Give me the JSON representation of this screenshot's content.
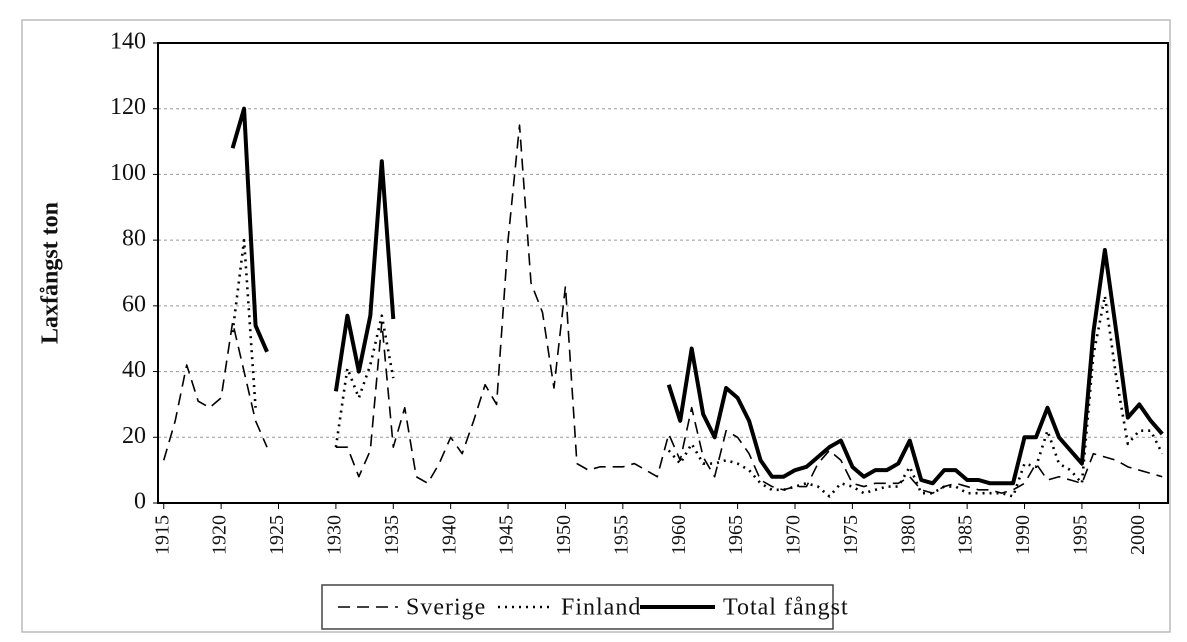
{
  "chart_data": {
    "type": "line",
    "y_label": "Laxfångst ton",
    "x": [
      1915,
      1916,
      1917,
      1918,
      1919,
      1920,
      1921,
      1922,
      1923,
      1924,
      1925,
      1926,
      1927,
      1928,
      1929,
      1930,
      1931,
      1932,
      1933,
      1934,
      1935,
      1936,
      1937,
      1938,
      1939,
      1940,
      1941,
      1942,
      1943,
      1944,
      1945,
      1946,
      1947,
      1948,
      1949,
      1950,
      1951,
      1952,
      1953,
      1954,
      1955,
      1956,
      1957,
      1958,
      1959,
      1960,
      1961,
      1962,
      1963,
      1964,
      1965,
      1966,
      1967,
      1968,
      1969,
      1970,
      1971,
      1972,
      1973,
      1974,
      1975,
      1976,
      1977,
      1978,
      1979,
      1980,
      1981,
      1982,
      1983,
      1984,
      1985,
      1986,
      1987,
      1988,
      1989,
      1990,
      1991,
      1992,
      1993,
      1994,
      1995,
      1996,
      1997,
      1998,
      1999,
      2000,
      2001,
      2002
    ],
    "series": [
      {
        "name": "Sverige",
        "color": "#000000",
        "style": "dashed",
        "values": [
          13,
          25,
          42,
          31,
          29,
          32,
          55,
          40,
          25,
          17,
          null,
          null,
          null,
          null,
          null,
          17,
          17,
          8,
          16,
          55,
          17,
          29,
          8,
          6,
          12,
          20,
          15,
          25,
          36,
          30,
          80,
          115,
          67,
          58,
          35,
          66,
          12,
          10,
          11,
          11,
          11,
          12,
          10,
          8,
          21,
          13,
          29,
          14,
          8,
          22,
          20,
          15,
          7,
          5,
          4,
          5,
          5,
          12,
          16,
          13,
          6,
          5,
          6,
          6,
          6,
          8,
          4,
          3,
          5,
          6,
          5,
          4,
          4,
          3,
          4,
          6,
          12,
          7,
          8,
          7,
          6,
          15,
          14,
          13,
          11,
          10,
          9,
          8
        ]
      },
      {
        "name": "Finland",
        "color": "#000000",
        "style": "dotted",
        "values": [
          null,
          null,
          null,
          null,
          null,
          null,
          52,
          80,
          29,
          null,
          null,
          null,
          null,
          null,
          null,
          17,
          41,
          32,
          42,
          57,
          38,
          null,
          null,
          null,
          null,
          null,
          null,
          null,
          null,
          null,
          null,
          null,
          null,
          null,
          null,
          null,
          null,
          null,
          null,
          null,
          null,
          null,
          null,
          null,
          16,
          12,
          18,
          12,
          12,
          13,
          12,
          10,
          6,
          4,
          4,
          5,
          6,
          5,
          2,
          6,
          5,
          3,
          4,
          5,
          5,
          11,
          3,
          3,
          5,
          5,
          3,
          3,
          3,
          3,
          2,
          12,
          11,
          22,
          12,
          10,
          6,
          45,
          63,
          38,
          18,
          22,
          22,
          15
        ]
      },
      {
        "name": "Total fångst",
        "color": "#000000",
        "style": "solid",
        "values": [
          null,
          null,
          null,
          null,
          null,
          null,
          108,
          120,
          54,
          46,
          null,
          null,
          null,
          null,
          null,
          34,
          57,
          40,
          57,
          104,
          56,
          null,
          null,
          null,
          null,
          null,
          null,
          null,
          null,
          null,
          null,
          null,
          null,
          null,
          null,
          null,
          null,
          null,
          null,
          null,
          null,
          null,
          null,
          null,
          36,
          25,
          47,
          27,
          20,
          35,
          32,
          25,
          13,
          8,
          8,
          10,
          11,
          14,
          17,
          19,
          11,
          8,
          10,
          10,
          12,
          19,
          7,
          6,
          10,
          10,
          7,
          7,
          6,
          6,
          6,
          20,
          20,
          29,
          20,
          16,
          12,
          52,
          77,
          52,
          26,
          30,
          25,
          21
        ]
      }
    ],
    "xlim": [
      1914.5,
      2002.5
    ],
    "xticks": [
      1915,
      1920,
      1925,
      1930,
      1935,
      1940,
      1945,
      1950,
      1955,
      1960,
      1965,
      1970,
      1975,
      1980,
      1985,
      1990,
      1995,
      2000
    ],
    "ylim": [
      0,
      140
    ],
    "yticks": [
      0,
      20,
      40,
      60,
      80,
      100,
      120,
      140
    ],
    "grid": true,
    "legend": "bottom"
  }
}
